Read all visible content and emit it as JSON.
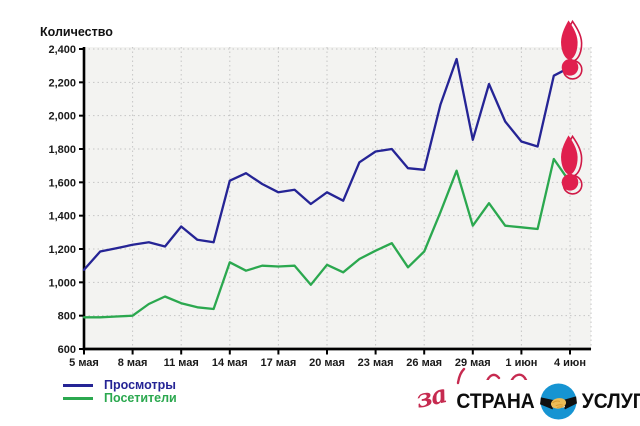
{
  "chart_data": {
    "type": "line",
    "title": "Количество",
    "ylabel": "Количество",
    "ylim": [
      600,
      2400
    ],
    "y_tick_step": 200,
    "y_tick_labels": [
      "600",
      "800",
      "1,000",
      "1,200",
      "1,400",
      "1,600",
      "1,800",
      "2,000",
      "2,200",
      "2,400"
    ],
    "x_tick_labels": [
      "5 мая",
      "8 мая",
      "11 мая",
      "14 мая",
      "17 мая",
      "20 мая",
      "23 мая",
      "26 мая",
      "29 мая",
      "1 июн",
      "4 июн"
    ],
    "x_points_per_tick": 3,
    "grid": true,
    "grid_style": "dotted",
    "plot_background": "#F3F3F1",
    "grid_color": "#C5C5C5",
    "axis_color": "#000000",
    "end_marker_color": "#E0204E",
    "end_marker_outline": "#D01946",
    "legend_position": "bottom-left",
    "series": [
      {
        "name": "Просмотры",
        "color": "#252495",
        "values": [
          1075,
          1185,
          1205,
          1225,
          1240,
          1215,
          1335,
          1255,
          1240,
          1610,
          1655,
          1590,
          1540,
          1555,
          1470,
          1540,
          1490,
          1720,
          1785,
          1800,
          1685,
          1675,
          2065,
          2340,
          1855,
          2190,
          1965,
          1845,
          1815,
          2240,
          2290
        ]
      },
      {
        "name": "Посетители",
        "color": "#2BA84F",
        "values": [
          790,
          790,
          795,
          800,
          870,
          915,
          875,
          850,
          840,
          1120,
          1070,
          1100,
          1095,
          1100,
          985,
          1105,
          1060,
          1140,
          1190,
          1235,
          1090,
          1185,
          1420,
          1670,
          1340,
          1475,
          1340,
          1330,
          1320,
          1740,
          1600
        ]
      }
    ]
  },
  "watermark": {
    "script_text": "за",
    "logo_left": "СТРАНА",
    "logo_right": "УСЛУГ"
  }
}
